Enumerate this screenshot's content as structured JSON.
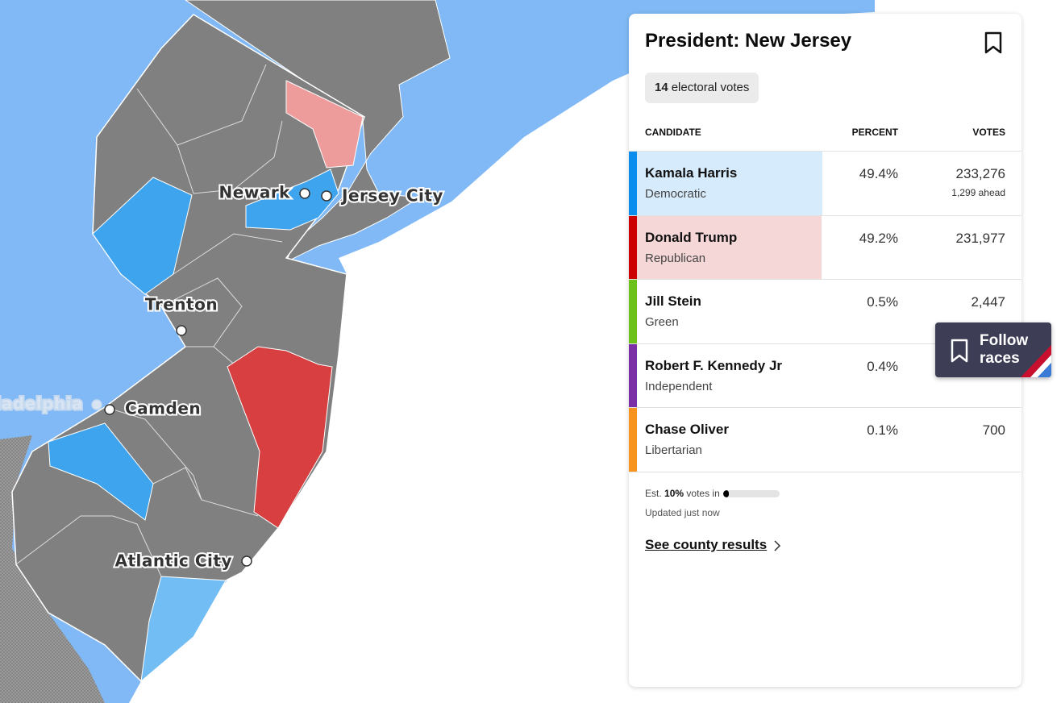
{
  "map": {
    "cities": [
      "Newark",
      "Jersey City",
      "Trenton",
      "Philadelphia",
      "Camden",
      "Atlantic City"
    ]
  },
  "panel": {
    "title": "President: New Jersey",
    "electoral_votes": "14",
    "electoral_votes_label": "electoral votes",
    "columns": [
      "CANDIDATE",
      "PERCENT",
      "VOTES"
    ],
    "rows": [
      {
        "name": "Kamala Harris",
        "party": "Democratic",
        "percent": "49.4%",
        "votes": "233,276",
        "note": "1,299 ahead"
      },
      {
        "name": "Donald Trump",
        "party": "Republican",
        "percent": "49.2%",
        "votes": "231,977"
      },
      {
        "name": "Jill Stein",
        "party": "Green",
        "percent": "0.5%",
        "votes": "2,447"
      },
      {
        "name": "Robert F. Kennedy Jr",
        "party": "Independent",
        "percent": "0.4%"
      },
      {
        "name": "Chase Oliver",
        "party": "Libertarian",
        "percent": "0.1%",
        "votes": "700"
      }
    ],
    "estimate": {
      "prefix": "Est.",
      "value": 10,
      "label": "10%",
      "suffix": "votes in"
    },
    "updated": "Updated just now",
    "link": "See county results"
  },
  "follow_button": {
    "line1": "Follow",
    "line2": "races"
  }
}
